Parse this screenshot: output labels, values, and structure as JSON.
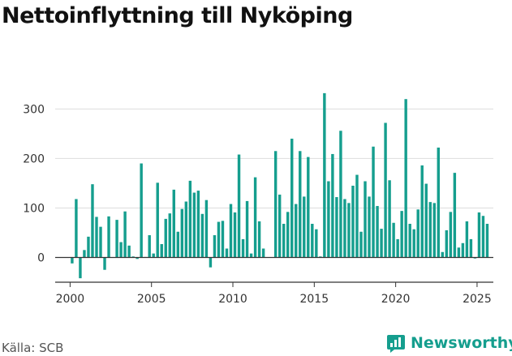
{
  "title": "Nettoinflyttning till Nyköping",
  "source": "Källa: SCB",
  "brand": {
    "name": "Newsworthy",
    "icon": "newsworthy-logo-icon"
  },
  "colors": {
    "bar": "#159e8e",
    "grid": "#dddddd",
    "axis": "#333333",
    "brand": "#159e8e"
  },
  "chart_data": {
    "type": "bar",
    "x_type": "month",
    "x_ticks": [
      "2000",
      "2005",
      "2010",
      "2015",
      "2020",
      "2025"
    ],
    "y_ticks": [
      "0",
      "100",
      "200",
      "300"
    ],
    "xlim": [
      "1999-02",
      "2026-01"
    ],
    "ylim": [
      -50,
      340
    ],
    "grid": "horizontal",
    "series": [
      {
        "values": [
          [
            "2000-01",
            -12
          ],
          [
            "2000-04",
            118
          ],
          [
            "2000-07",
            -42
          ],
          [
            "2000-10",
            15
          ],
          [
            "2001-01",
            42
          ],
          [
            "2001-04",
            148
          ],
          [
            "2001-07",
            82
          ],
          [
            "2001-10",
            62
          ],
          [
            "2002-01",
            -25
          ],
          [
            "2002-04",
            83
          ],
          [
            "2002-10",
            76
          ],
          [
            "2003-01",
            31
          ],
          [
            "2003-04",
            93
          ],
          [
            "2003-07",
            24
          ],
          [
            "2003-10",
            2
          ],
          [
            "2004-01",
            -3
          ],
          [
            "2004-04",
            190
          ],
          [
            "2004-07",
            1
          ],
          [
            "2004-10",
            45
          ],
          [
            "2005-01",
            8
          ],
          [
            "2005-04",
            151
          ],
          [
            "2005-07",
            27
          ],
          [
            "2005-10",
            78
          ],
          [
            "2006-01",
            89
          ],
          [
            "2006-04",
            137
          ],
          [
            "2006-07",
            52
          ],
          [
            "2006-10",
            98
          ],
          [
            "2007-01",
            113
          ],
          [
            "2007-04",
            155
          ],
          [
            "2007-07",
            131
          ],
          [
            "2007-10",
            135
          ],
          [
            "2008-01",
            88
          ],
          [
            "2008-04",
            116
          ],
          [
            "2008-07",
            -20
          ],
          [
            "2008-10",
            45
          ],
          [
            "2009-01",
            72
          ],
          [
            "2009-04",
            74
          ],
          [
            "2009-07",
            18
          ],
          [
            "2009-10",
            108
          ],
          [
            "2010-01",
            91
          ],
          [
            "2010-04",
            208
          ],
          [
            "2010-07",
            37
          ],
          [
            "2010-10",
            114
          ],
          [
            "2011-01",
            8
          ],
          [
            "2011-04",
            162
          ],
          [
            "2011-07",
            73
          ],
          [
            "2011-10",
            18
          ],
          [
            "2012-07",
            215
          ],
          [
            "2012-10",
            127
          ],
          [
            "2013-01",
            68
          ],
          [
            "2013-04",
            92
          ],
          [
            "2013-07",
            240
          ],
          [
            "2013-10",
            108
          ],
          [
            "2014-01",
            215
          ],
          [
            "2014-04",
            123
          ],
          [
            "2014-07",
            203
          ],
          [
            "2014-10",
            68
          ],
          [
            "2015-01",
            57
          ],
          [
            "2015-04",
            2
          ],
          [
            "2015-07",
            332
          ],
          [
            "2015-10",
            154
          ],
          [
            "2016-01",
            209
          ],
          [
            "2016-04",
            122
          ],
          [
            "2016-07",
            256
          ],
          [
            "2016-10",
            118
          ],
          [
            "2017-01",
            110
          ],
          [
            "2017-04",
            145
          ],
          [
            "2017-07",
            167
          ],
          [
            "2017-10",
            52
          ],
          [
            "2018-01",
            154
          ],
          [
            "2018-04",
            123
          ],
          [
            "2018-07",
            224
          ],
          [
            "2018-10",
            104
          ],
          [
            "2019-01",
            58
          ],
          [
            "2019-04",
            272
          ],
          [
            "2019-07",
            156
          ],
          [
            "2019-10",
            70
          ],
          [
            "2020-01",
            37
          ],
          [
            "2020-04",
            94
          ],
          [
            "2020-07",
            320
          ],
          [
            "2020-10",
            68
          ],
          [
            "2021-01",
            57
          ],
          [
            "2021-04",
            97
          ],
          [
            "2021-07",
            186
          ],
          [
            "2021-10",
            149
          ],
          [
            "2022-01",
            112
          ],
          [
            "2022-04",
            110
          ],
          [
            "2022-07",
            222
          ],
          [
            "2022-10",
            11
          ],
          [
            "2023-01",
            55
          ],
          [
            "2023-04",
            92
          ],
          [
            "2023-07",
            171
          ],
          [
            "2023-10",
            20
          ],
          [
            "2024-01",
            29
          ],
          [
            "2024-04",
            73
          ],
          [
            "2024-07",
            37
          ],
          [
            "2024-10",
            -2
          ],
          [
            "2025-01",
            91
          ],
          [
            "2025-04",
            84
          ],
          [
            "2025-07",
            68
          ]
        ]
      }
    ]
  }
}
